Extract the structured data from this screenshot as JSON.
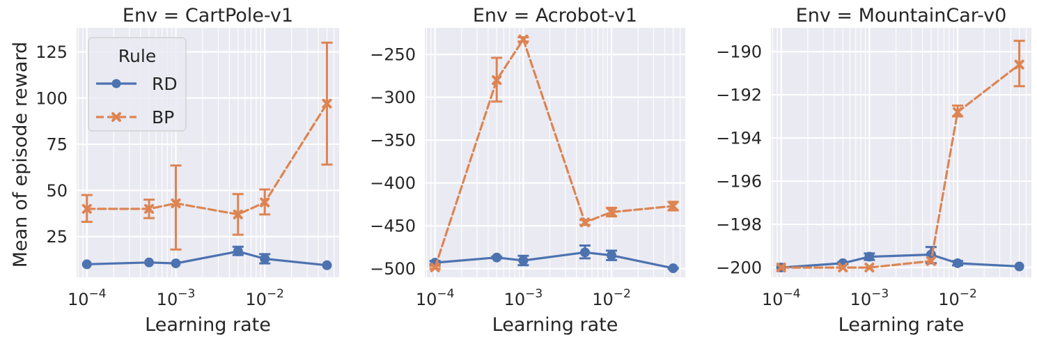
{
  "figure": {
    "ylabel": "Mean of episode reward",
    "legend": {
      "title": "Rule",
      "placement": "upper-left of first panel",
      "entries": [
        {
          "label": "RD",
          "color": "#4c72b0",
          "marker": "circle",
          "linestyle": "solid"
        },
        {
          "label": "BP",
          "color": "#dd8452",
          "marker": "x",
          "linestyle": "dashed"
        }
      ]
    }
  },
  "chart_data": [
    {
      "type": "line",
      "title": "Env = CartPole-v1",
      "xlabel": "Learning rate",
      "ylabel": "Mean of episode reward",
      "xscale": "log",
      "x": [
        0.0001,
        0.0005,
        0.001,
        0.005,
        0.01,
        0.05
      ],
      "xlim": [
        7.66e-05,
        0.0686
      ],
      "ylim": [
        3,
        138
      ],
      "yticks": [
        25,
        50,
        75,
        100,
        125
      ],
      "xticks_labels": [
        "10^-4",
        "10^-3",
        "10^-2"
      ],
      "grid": true,
      "series": [
        {
          "name": "RD",
          "values": [
            10,
            11,
            10.5,
            17,
            13,
            9.5
          ],
          "err_low": [
            10,
            11,
            10.5,
            15,
            10.5,
            9.5
          ],
          "err_high": [
            10,
            11,
            10.5,
            19.5,
            15.5,
            9.5
          ]
        },
        {
          "name": "BP",
          "values": [
            40,
            40,
            43,
            37,
            43.5,
            97
          ],
          "err_low": [
            33,
            35,
            18,
            26,
            37,
            64
          ],
          "err_high": [
            47.5,
            45,
            63.5,
            48,
            50.5,
            130
          ]
        }
      ]
    },
    {
      "type": "line",
      "title": "Env = Acrobot-v1",
      "xlabel": "Learning rate",
      "xscale": "log",
      "x": [
        0.0001,
        0.0005,
        0.001,
        0.005,
        0.01,
        0.05
      ],
      "xlim": [
        7.66e-05,
        0.0686
      ],
      "ylim": [
        -510,
        -219
      ],
      "yticks": [
        -500,
        -450,
        -400,
        -350,
        -300,
        -250
      ],
      "xticks_labels": [
        "10^-4",
        "10^-3",
        "10^-2"
      ],
      "grid": true,
      "series": [
        {
          "name": "RD",
          "values": [
            -493,
            -487,
            -490.5,
            -481,
            -484.5,
            -499.5
          ],
          "err_low": [
            -495,
            -488,
            -496,
            -488,
            -490,
            -500
          ],
          "err_high": [
            -491,
            -486,
            -485,
            -473,
            -479,
            -499
          ]
        },
        {
          "name": "BP",
          "values": [
            -498.5,
            -280,
            -232.5,
            -446,
            -434,
            -427
          ],
          "err_low": [
            -500,
            -305,
            -235,
            -449,
            -439,
            -432
          ],
          "err_high": [
            -497,
            -254,
            -230,
            -443,
            -429,
            -422
          ]
        }
      ]
    },
    {
      "type": "line",
      "title": "Env = MountainCar-v0",
      "xlabel": "Learning rate",
      "xscale": "log",
      "x": [
        0.0001,
        0.0005,
        0.001,
        0.005,
        0.01,
        0.05
      ],
      "xlim": [
        7.66e-05,
        0.0686
      ],
      "ylim": [
        -200.45,
        -188.9
      ],
      "yticks": [
        -200,
        -198,
        -196,
        -194,
        -192,
        -190
      ],
      "xticks_labels": [
        "10^-4",
        "10^-3",
        "10^-2"
      ],
      "grid": true,
      "series": [
        {
          "name": "RD",
          "values": [
            -200,
            -199.8,
            -199.5,
            -199.4,
            -199.8,
            -199.95
          ],
          "err_low": [
            -200,
            -199.85,
            -199.65,
            -199.8,
            -199.9,
            -199.95
          ],
          "err_high": [
            -200,
            -199.75,
            -199.35,
            -199.05,
            -199.7,
            -199.95
          ]
        },
        {
          "name": "BP",
          "values": [
            -200,
            -200,
            -200,
            -199.7,
            -192.8,
            -190.6
          ],
          "err_low": [
            -200,
            -200,
            -200,
            -199.7,
            -193,
            -191.6
          ],
          "err_high": [
            -200,
            -200,
            -200,
            -199.7,
            -192.5,
            -189.5
          ]
        }
      ]
    }
  ]
}
